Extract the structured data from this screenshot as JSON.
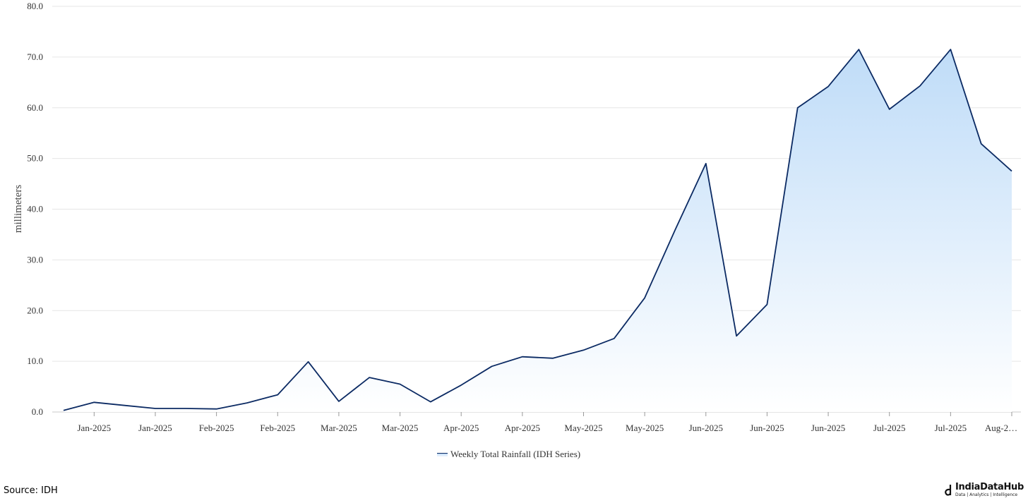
{
  "chart_data": {
    "type": "area",
    "title": "",
    "xlabel": "",
    "ylabel": "millimeters",
    "ylim": [
      0,
      80
    ],
    "yticks": [
      "0.0",
      "10.0",
      "20.0",
      "30.0",
      "40.0",
      "50.0",
      "60.0",
      "70.0",
      "80.0"
    ],
    "xtick_labels": [
      "Jan-2025",
      "Jan-2025",
      "Feb-2025",
      "Feb-2025",
      "Mar-2025",
      "Mar-2025",
      "Apr-2025",
      "Apr-2025",
      "May-2025",
      "May-2025",
      "Jun-2025",
      "Jun-2025",
      "Jun-2025",
      "Jul-2025",
      "Jul-2025",
      "Aug-2…"
    ],
    "grid": true,
    "legend_position": "bottom-center",
    "series": [
      {
        "name": "Weekly Total Rainfall (IDH Series)",
        "color": "#0b2a63",
        "fill_top": "#bfdcf8",
        "fill_bottom": "#ffffff",
        "values": [
          0.3,
          1.9,
          1.3,
          0.7,
          0.7,
          0.6,
          1.8,
          3.4,
          9.9,
          2.1,
          6.8,
          5.5,
          2.0,
          5.3,
          9.0,
          10.9,
          10.6,
          12.2,
          14.5,
          22.5,
          36.0,
          49.0,
          15.0,
          21.2,
          60.0,
          64.2,
          71.5,
          59.7,
          64.3,
          71.5,
          52.9,
          47.5
        ]
      }
    ]
  },
  "footer": {
    "source": "Source: IDH",
    "brand_name": "IndiaDataHub",
    "brand_tagline": "Data | Analytics | Intelligence",
    "logo_icon": "d-logo-icon"
  }
}
